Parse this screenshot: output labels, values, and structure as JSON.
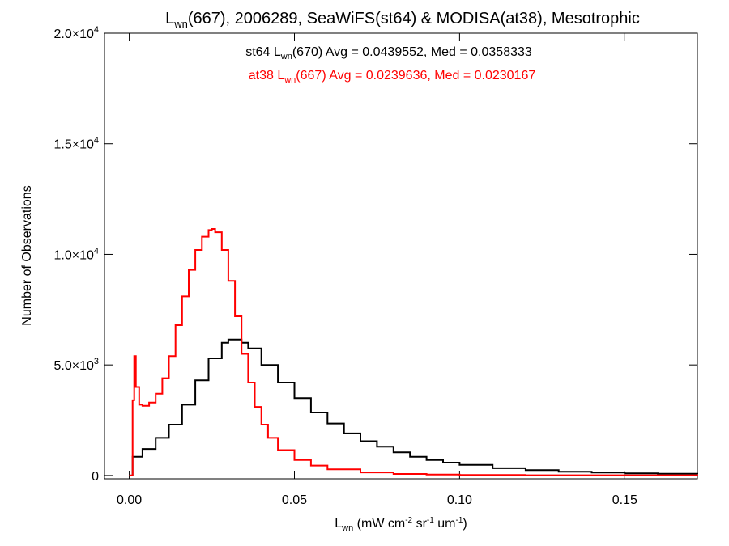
{
  "chart_data": {
    "type": "line",
    "title": {
      "main": "L",
      "sub": "wn",
      "rest": "(667), 2006289, SeaWiFS(st64) & MODISA(at38), Mesotrophic"
    },
    "xlabel": {
      "main": "L",
      "sub": "wn",
      "unit_a": " (mW cm",
      "exp_a": "-2",
      "unit_b": " sr",
      "exp_b": "-1",
      "unit_c": " um",
      "exp_c": "-1",
      "unit_d": ")"
    },
    "ylabel": "Number of Observations",
    "xlim": [
      -0.0075,
      0.172
    ],
    "ylim": [
      -150,
      20000
    ],
    "x_ticks": [
      {
        "value": 0.0,
        "label": "0.00"
      },
      {
        "value": 0.05,
        "label": "0.05"
      },
      {
        "value": 0.1,
        "label": "0.10"
      },
      {
        "value": 0.15,
        "label": "0.15"
      }
    ],
    "y_ticks": [
      {
        "value": 0,
        "mant": "0",
        "exp": ""
      },
      {
        "value": 5000,
        "mant": "5.0×10",
        "exp": "3"
      },
      {
        "value": 10000,
        "mant": "1.0×10",
        "exp": "4"
      },
      {
        "value": 15000,
        "mant": "1.5×10",
        "exp": "4"
      },
      {
        "value": 20000,
        "mant": "2.0×10",
        "exp": "4"
      }
    ],
    "annotations": [
      {
        "pre": "st64 L",
        "sub": "wn",
        "post": "(670) Avg = 0.0439552, Med = 0.0358333",
        "color": "#000000"
      },
      {
        "pre": "at38 L",
        "sub": "wn",
        "post": "(667) Avg = 0.0239636, Med = 0.0230167",
        "color": "#ff0000"
      }
    ],
    "series": [
      {
        "color": "#000000",
        "x": [
          0.0,
          0.001,
          0.004,
          0.008,
          0.012,
          0.016,
          0.02,
          0.024,
          0.028,
          0.03,
          0.032,
          0.034,
          0.036,
          0.04,
          0.045,
          0.05,
          0.055,
          0.06,
          0.065,
          0.07,
          0.075,
          0.08,
          0.085,
          0.09,
          0.095,
          0.1,
          0.11,
          0.12,
          0.13,
          0.14,
          0.15,
          0.16,
          0.172
        ],
        "y": [
          0,
          850,
          1200,
          1700,
          2300,
          3200,
          4300,
          5300,
          6000,
          6150,
          6150,
          6000,
          5750,
          5000,
          4200,
          3500,
          2850,
          2350,
          1900,
          1550,
          1300,
          1050,
          850,
          700,
          580,
          480,
          330,
          240,
          170,
          130,
          100,
          80,
          60
        ]
      },
      {
        "color": "#ff0000",
        "x": [
          0.0,
          0.001,
          0.0015,
          0.002,
          0.003,
          0.004,
          0.006,
          0.008,
          0.01,
          0.012,
          0.014,
          0.016,
          0.018,
          0.02,
          0.022,
          0.024,
          0.025,
          0.026,
          0.028,
          0.03,
          0.032,
          0.034,
          0.036,
          0.038,
          0.04,
          0.042,
          0.045,
          0.05,
          0.055,
          0.06,
          0.07,
          0.08,
          0.09,
          0.1,
          0.12,
          0.172
        ],
        "y": [
          0,
          3400,
          5400,
          4000,
          3200,
          3150,
          3300,
          3700,
          4400,
          5400,
          6800,
          8100,
          9300,
          10200,
          10800,
          11100,
          11150,
          11000,
          10200,
          8800,
          7200,
          5500,
          4200,
          3100,
          2300,
          1700,
          1150,
          700,
          450,
          280,
          140,
          70,
          40,
          25,
          10,
          0
        ]
      }
    ]
  }
}
